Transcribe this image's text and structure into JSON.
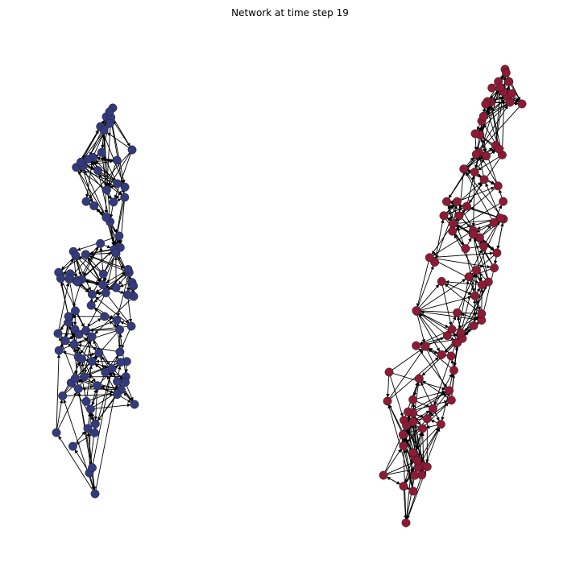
{
  "figure": {
    "title": "Network at time step 19"
  },
  "colors": {
    "background": "#ffffff",
    "edge": "#000000",
    "cluster_left": "#343a7e",
    "cluster_right": "#8e1a35",
    "node_outline": "#1f1f1f"
  },
  "clusters": [
    {
      "name": "left-cluster",
      "color_key": "cluster_left",
      "node_count": 100
    },
    {
      "name": "right-cluster",
      "color_key": "cluster_right",
      "node_count": 100
    }
  ]
}
